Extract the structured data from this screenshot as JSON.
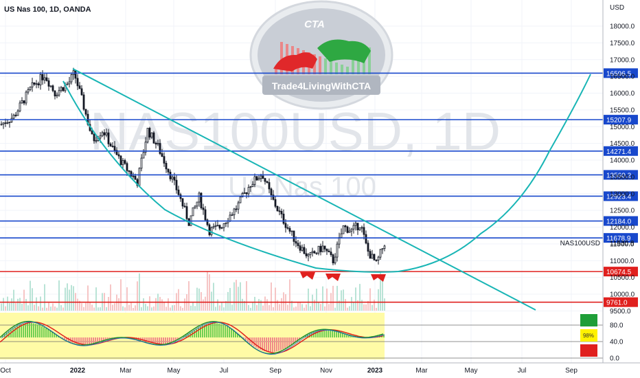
{
  "header": {
    "title": "US Nas 100, 1D, OANDA"
  },
  "watermark": {
    "symbol": "NAS100USD, 1D",
    "name": "US Nas 100",
    "brand": "Trade4LivingWithCTA",
    "logo_text": "CTA"
  },
  "chart_data": {
    "type": "candlestick",
    "title": "US Nas 100, 1D, OANDA",
    "currency_label": "USD",
    "y_range": [
      9250,
      19000
    ],
    "y_ticks": [
      {
        "value": 18000,
        "label": "18000.0"
      },
      {
        "value": 17500,
        "label": "17500.0"
      },
      {
        "value": 17000,
        "label": "17000.0"
      },
      {
        "value": 16500,
        "label": "16500.0"
      },
      {
        "value": 16000,
        "label": "16000.0"
      },
      {
        "value": 15500,
        "label": "15500.0"
      },
      {
        "value": 15000,
        "label": "15000.0"
      },
      {
        "value": 14500,
        "label": "14500.0"
      },
      {
        "value": 14000,
        "label": "14000.0"
      },
      {
        "value": 13500,
        "label": "13500.0"
      },
      {
        "value": 13000,
        "label": "13000.0"
      },
      {
        "value": 12500,
        "label": "12500.0"
      },
      {
        "value": 12000,
        "label": "12000.0"
      },
      {
        "value": 11500,
        "label": "11500.0"
      },
      {
        "value": 11000,
        "label": "11000.0"
      },
      {
        "value": 10500,
        "label": "10500.0"
      },
      {
        "value": 10000,
        "label": "10000.0"
      },
      {
        "value": 9500,
        "label": "9500.0"
      }
    ],
    "x_ticks": [
      "Oct",
      "2022",
      "Mar",
      "May",
      "Jul",
      "Sep",
      "Nov",
      "2023",
      "Mar",
      "May",
      "Jul",
      "Sep"
    ],
    "horizontal_levels": [
      {
        "value": 16596.5,
        "label": "16596.5",
        "color": "#1848cc"
      },
      {
        "value": 15207.9,
        "label": "15207.9",
        "color": "#1848cc"
      },
      {
        "value": 14271.4,
        "label": "14271.4",
        "color": "#1848cc"
      },
      {
        "value": 13560.2,
        "label": "13560.2",
        "color": "#1848cc"
      },
      {
        "value": 12923.4,
        "label": "12923.4",
        "color": "#1848cc"
      },
      {
        "value": 12184.0,
        "label": "12184.0",
        "color": "#1848cc"
      },
      {
        "value": 11678.9,
        "label": "11678.9",
        "color": "#1848cc"
      },
      {
        "value": 10674.5,
        "label": "10674.5",
        "color": "#e0201e"
      },
      {
        "value": 9761.0,
        "label": "9761.0",
        "color": "#e0201e"
      }
    ],
    "current_price": {
      "value": 11530.8,
      "label": "11530.8",
      "symbol": "NAS100USD"
    },
    "oscillator": {
      "ticks": [
        {
          "value": 80,
          "label": "80.0"
        },
        {
          "value": 40,
          "label": "40.0"
        },
        {
          "value": 0,
          "label": "0.0"
        }
      ],
      "signal_text": "98%",
      "signal_colors": [
        "#1e9e38",
        "#fff200",
        "#e0201e"
      ]
    },
    "colors": {
      "trendline": "#18b5b5",
      "support": "#e0201e",
      "resistance": "#1848cc",
      "candles": "#131722"
    }
  }
}
